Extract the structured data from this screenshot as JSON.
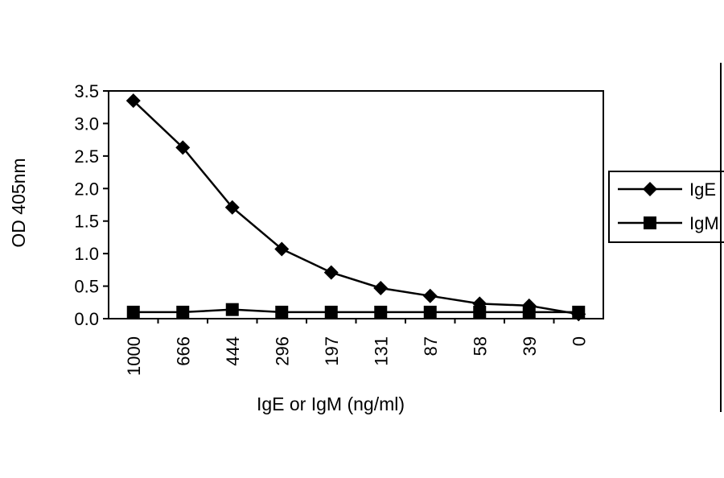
{
  "chart_data": {
    "type": "line",
    "title": "",
    "xlabel": "IgE or IgM  (ng/ml)",
    "ylabel": "OD 405nm",
    "categories": [
      "1000",
      "666",
      "444",
      "296",
      "197",
      "131",
      "87",
      "58",
      "39",
      "0"
    ],
    "ylim": [
      0,
      3.5
    ],
    "yticks": [
      "0.0",
      "0.5",
      "1.0",
      "1.5",
      "2.0",
      "2.5",
      "3.0",
      "3.5"
    ],
    "grid": false,
    "legend_position": "right",
    "series": [
      {
        "name": "IgE",
        "marker": "diamond",
        "color": "#000000",
        "values": [
          3.35,
          2.63,
          1.71,
          1.07,
          0.71,
          0.47,
          0.35,
          0.23,
          0.2,
          0.07
        ]
      },
      {
        "name": "IgM",
        "marker": "square",
        "color": "#000000",
        "values": [
          0.1,
          0.1,
          0.14,
          0.1,
          0.1,
          0.1,
          0.1,
          0.1,
          0.1,
          0.1
        ]
      }
    ]
  }
}
